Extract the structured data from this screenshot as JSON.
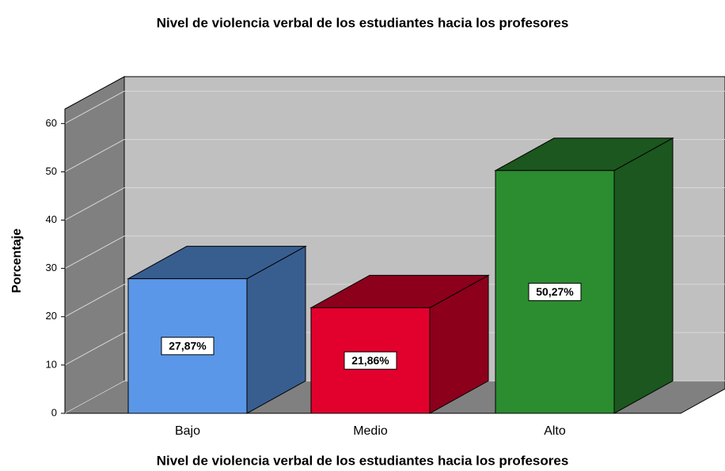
{
  "chart_data": {
    "type": "bar3d",
    "title": "Nivel de violencia verbal de los estudiantes hacia los profesores",
    "x_label": "Nivel de violencia verbal de los estudiantes hacia los profesores",
    "y_label": "Porcentaje",
    "categories": [
      "Bajo",
      "Medio",
      "Alto"
    ],
    "values": [
      27.87,
      21.86,
      50.27
    ],
    "value_labels": [
      "27,87%",
      "21,86%",
      "50,27%"
    ],
    "colors": [
      "#5b97e8",
      "#e2002d",
      "#2b8c30"
    ],
    "ylim": [
      0,
      63
    ],
    "yticks": [
      0,
      10,
      20,
      30,
      40,
      50,
      60
    ],
    "grid": true
  }
}
